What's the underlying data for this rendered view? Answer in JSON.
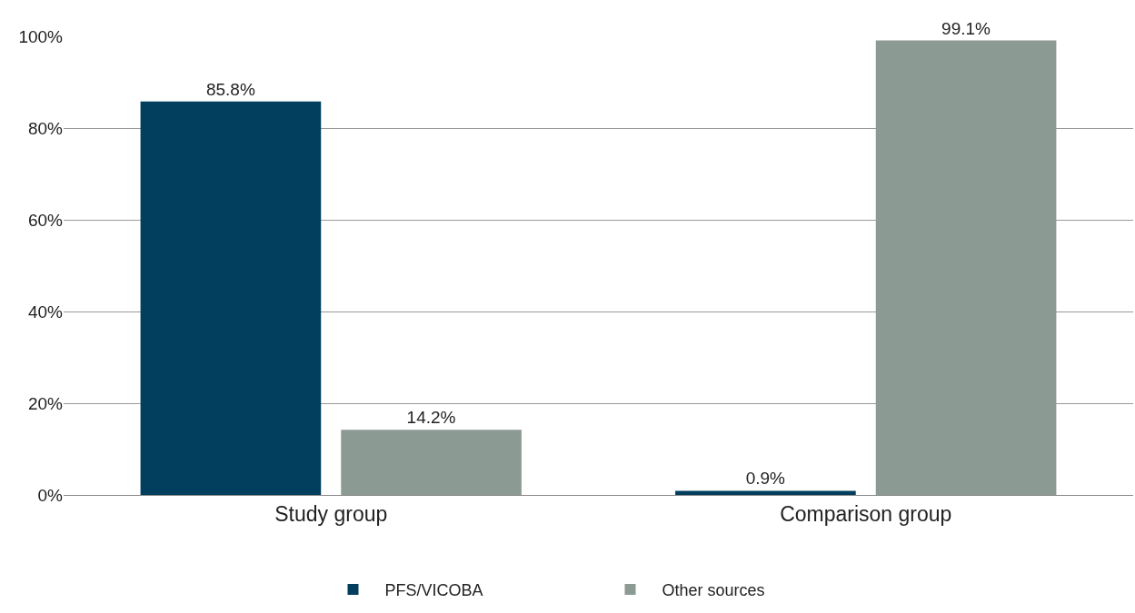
{
  "chart_data": {
    "type": "bar",
    "categories": [
      "Study group",
      "Comparison group"
    ],
    "series": [
      {
        "name": "PFS/VICOBA",
        "color": "#023e5e",
        "values": [
          85.8,
          0.9
        ],
        "value_labels": [
          "85.8%",
          "0.9%"
        ]
      },
      {
        "name": "Other sources",
        "color": "#8c9a94",
        "values": [
          14.2,
          99.1
        ],
        "value_labels": [
          "14.2%",
          "99.1%"
        ]
      }
    ],
    "ylim": [
      0,
      100
    ],
    "yticks": [
      {
        "value": 0,
        "label": "0%"
      },
      {
        "value": 20,
        "label": "20%"
      },
      {
        "value": 40,
        "label": "40%"
      },
      {
        "value": 60,
        "label": "60%"
      },
      {
        "value": 80,
        "label": "80%"
      },
      {
        "value": 100,
        "label": "100%"
      }
    ],
    "grid": "y",
    "legend": "bottom"
  }
}
